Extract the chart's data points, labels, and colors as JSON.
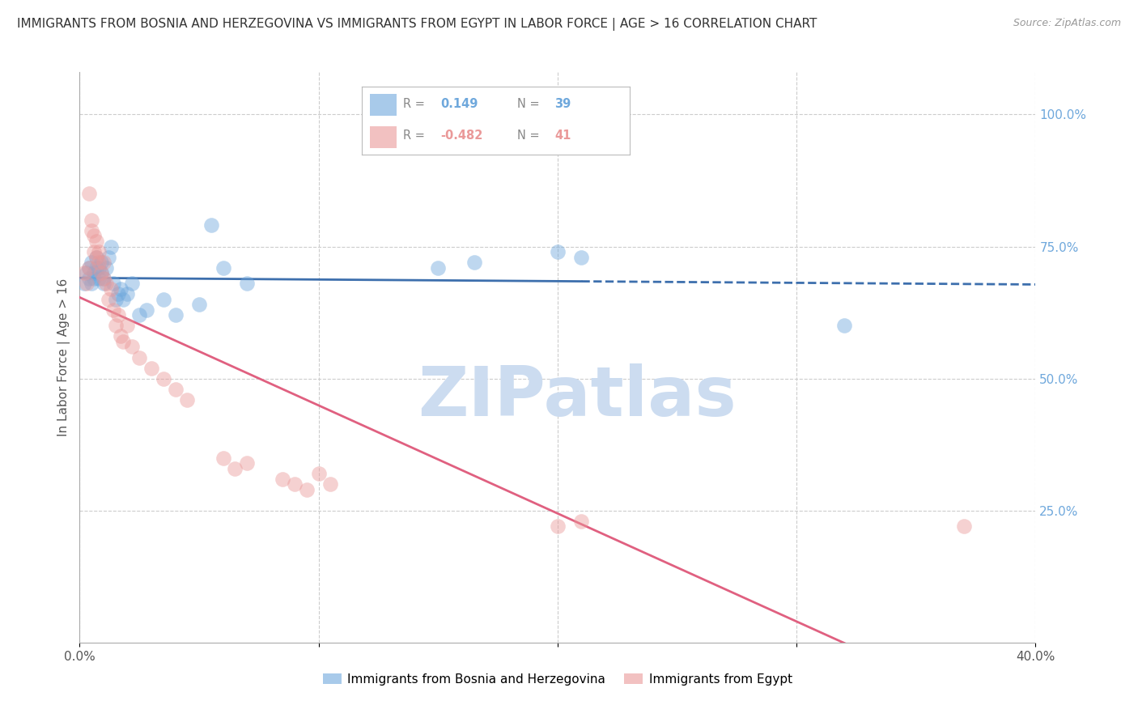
{
  "title": "IMMIGRANTS FROM BOSNIA AND HERZEGOVINA VS IMMIGRANTS FROM EGYPT IN LABOR FORCE | AGE > 16 CORRELATION CHART",
  "source": "Source: ZipAtlas.com",
  "ylabel": "In Labor Force | Age > 16",
  "xlim": [
    0.0,
    0.4
  ],
  "ylim": [
    0.0,
    1.08
  ],
  "x_ticks": [
    0.0,
    0.1,
    0.2,
    0.3,
    0.4
  ],
  "x_tick_labels": [
    "0.0%",
    "",
    "",
    "",
    "40.0%"
  ],
  "y_ticks_right": [
    0.25,
    0.5,
    0.75,
    1.0
  ],
  "y_tick_labels_right": [
    "25.0%",
    "50.0%",
    "75.0%",
    "100.0%"
  ],
  "bosnia_R": 0.149,
  "bosnia_N": 39,
  "egypt_R": -0.482,
  "egypt_N": 41,
  "bosnia_color": "#6fa8dc",
  "egypt_color": "#ea9999",
  "bosnia_line_color": "#3d6fad",
  "egypt_line_color": "#e06080",
  "watermark": "ZIPatlas",
  "watermark_color": "#ccdcf0",
  "legend_bosnia_label": "Immigrants from Bosnia and Herzegovina",
  "legend_egypt_label": "Immigrants from Egypt",
  "bosnia_scatter_x": [
    0.002,
    0.003,
    0.004,
    0.004,
    0.005,
    0.005,
    0.006,
    0.006,
    0.007,
    0.007,
    0.008,
    0.008,
    0.009,
    0.009,
    0.01,
    0.01,
    0.011,
    0.012,
    0.013,
    0.014,
    0.015,
    0.016,
    0.017,
    0.018,
    0.02,
    0.022,
    0.025,
    0.028,
    0.035,
    0.04,
    0.05,
    0.055,
    0.06,
    0.07,
    0.15,
    0.165,
    0.2,
    0.21,
    0.32
  ],
  "bosnia_scatter_y": [
    0.68,
    0.7,
    0.69,
    0.71,
    0.68,
    0.72,
    0.69,
    0.7,
    0.71,
    0.73,
    0.69,
    0.71,
    0.7,
    0.72,
    0.68,
    0.69,
    0.71,
    0.73,
    0.75,
    0.68,
    0.65,
    0.66,
    0.67,
    0.65,
    0.66,
    0.68,
    0.62,
    0.63,
    0.65,
    0.62,
    0.64,
    0.79,
    0.71,
    0.68,
    0.71,
    0.72,
    0.74,
    0.73,
    0.6
  ],
  "egypt_scatter_x": [
    0.002,
    0.003,
    0.004,
    0.004,
    0.005,
    0.005,
    0.006,
    0.006,
    0.007,
    0.007,
    0.008,
    0.008,
    0.009,
    0.01,
    0.01,
    0.011,
    0.012,
    0.013,
    0.014,
    0.015,
    0.016,
    0.017,
    0.018,
    0.02,
    0.022,
    0.025,
    0.03,
    0.035,
    0.04,
    0.045,
    0.06,
    0.065,
    0.07,
    0.085,
    0.09,
    0.095,
    0.1,
    0.105,
    0.2,
    0.21,
    0.37
  ],
  "egypt_scatter_y": [
    0.7,
    0.68,
    0.71,
    0.85,
    0.78,
    0.8,
    0.77,
    0.74,
    0.73,
    0.76,
    0.72,
    0.74,
    0.7,
    0.69,
    0.72,
    0.68,
    0.65,
    0.67,
    0.63,
    0.6,
    0.62,
    0.58,
    0.57,
    0.6,
    0.56,
    0.54,
    0.52,
    0.5,
    0.48,
    0.46,
    0.35,
    0.33,
    0.34,
    0.31,
    0.3,
    0.29,
    0.32,
    0.3,
    0.22,
    0.23,
    0.22
  ],
  "grid_color": "#cccccc",
  "background_color": "#ffffff",
  "title_fontsize": 11,
  "axis_label_fontsize": 11,
  "tick_fontsize": 11,
  "scatter_size": 180,
  "scatter_alpha": 0.45,
  "line_width": 2.0,
  "bosnia_dashed_from": 0.21
}
